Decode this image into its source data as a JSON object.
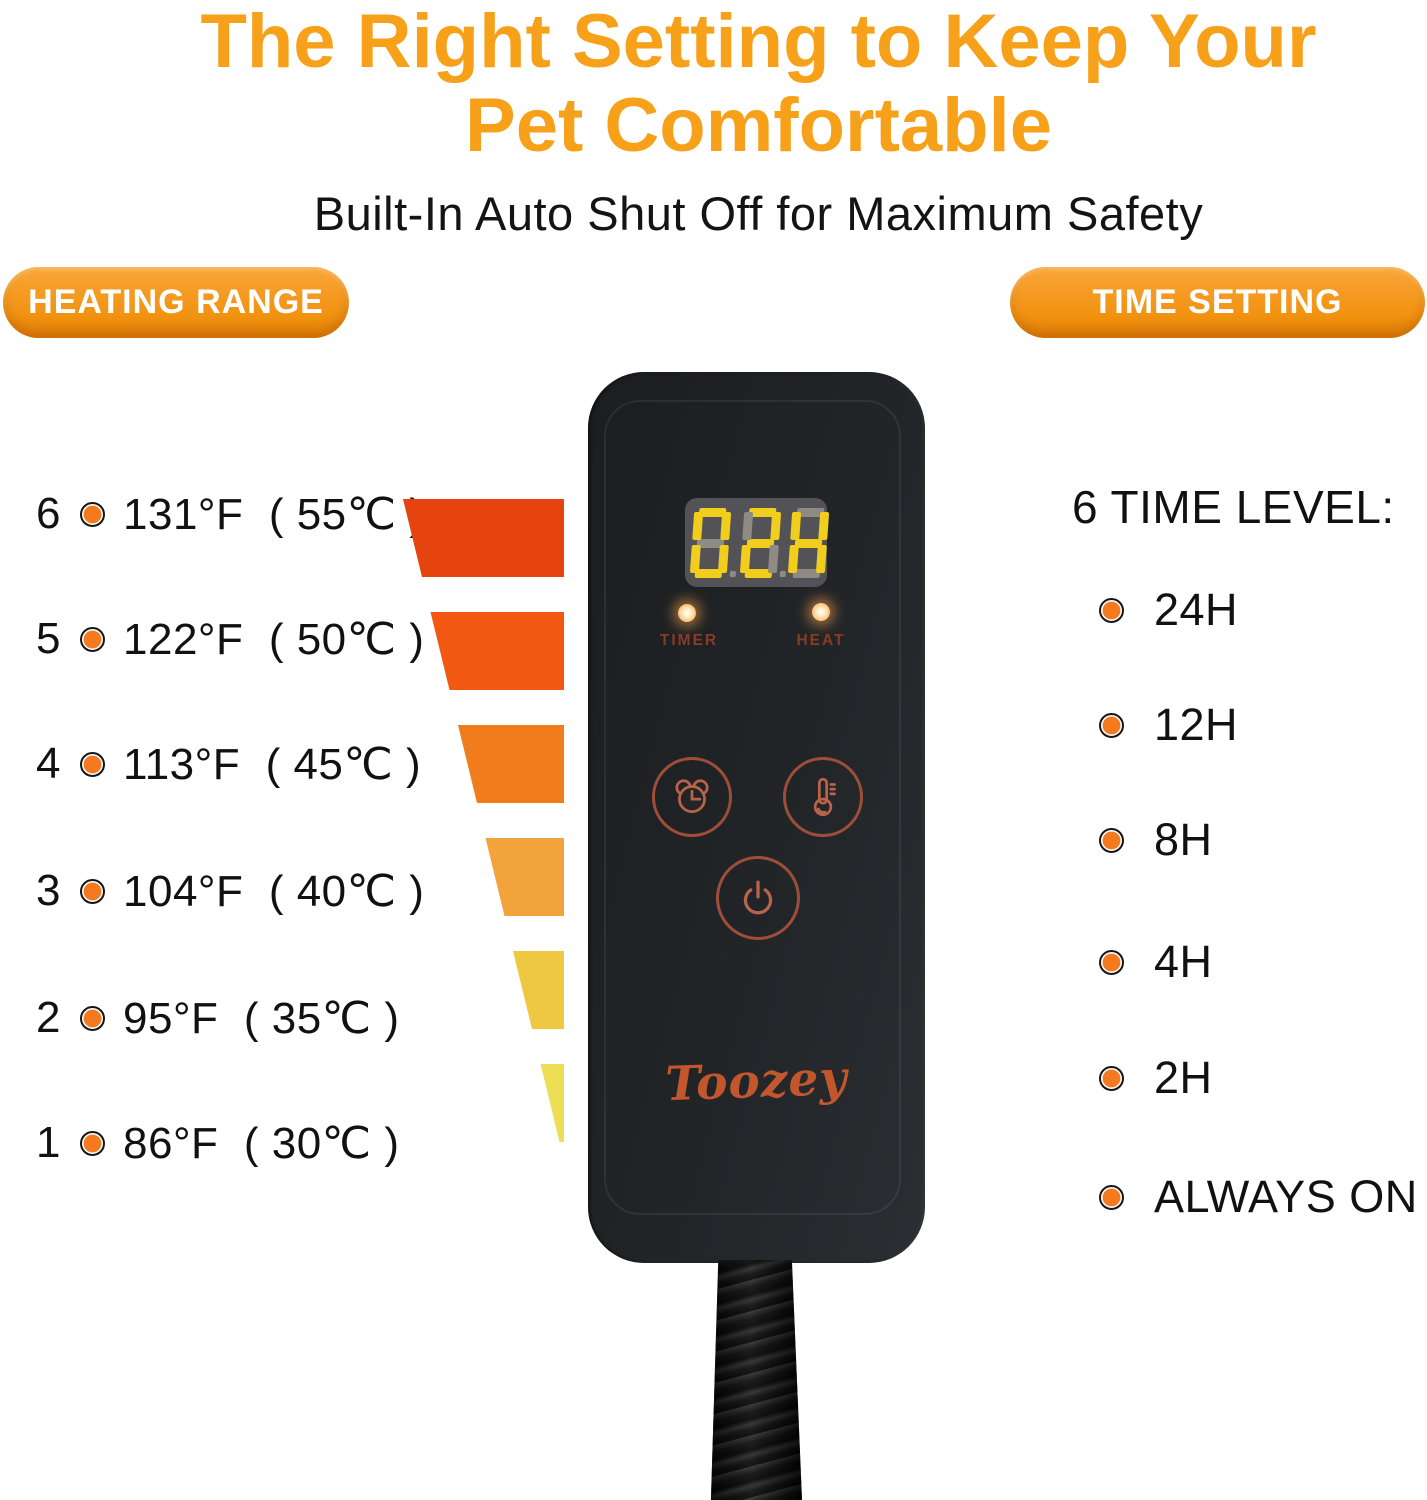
{
  "header": {
    "title_line1": "The Right Setting to Keep Your",
    "title_line2": "Pet Comfortable",
    "subtitle": "Built-In Auto Shut Off for Maximum Safety"
  },
  "section_labels": {
    "heating_range": "HEATING RANGE",
    "time_setting": "TIME SETTING"
  },
  "heating_levels": [
    {
      "level": "6",
      "temp_f": "131°F",
      "temp_c": "55℃",
      "bar_color": "#E5440F"
    },
    {
      "level": "5",
      "temp_f": "122°F",
      "temp_c": "50℃",
      "bar_color": "#F35812"
    },
    {
      "level": "4",
      "temp_f": "113°F",
      "temp_c": "45℃",
      "bar_color": "#F07C1C"
    },
    {
      "level": "3",
      "temp_f": "104°F",
      "temp_c": "40℃",
      "bar_color": "#F2A33C"
    },
    {
      "level": "2",
      "temp_f": "95°F",
      "temp_c": "35℃",
      "bar_color": "#EFC842"
    },
    {
      "level": "1",
      "temp_f": "86°F",
      "temp_c": "30℃",
      "bar_color": "#ECDF55"
    }
  ],
  "time_setting": {
    "heading": "6 TIME LEVEL:",
    "items": [
      "24H",
      "12H",
      "8H",
      "4H",
      "2H",
      "ALWAYS ON"
    ]
  },
  "device": {
    "brand": "Toozey",
    "display": {
      "value": "02H",
      "digits": [
        {
          "char": "0",
          "segments": [
            "a",
            "b",
            "c",
            "d",
            "e",
            "f"
          ],
          "dp": true
        },
        {
          "char": "2",
          "segments": [
            "a",
            "b",
            "g",
            "e",
            "d"
          ],
          "dp": true
        },
        {
          "char": "H",
          "segments": [
            "f",
            "b",
            "g",
            "e",
            "c"
          ],
          "dp": false
        }
      ]
    },
    "indicators": [
      {
        "label": "TIMER"
      },
      {
        "label": "HEAT"
      }
    ],
    "buttons": [
      {
        "name": "timer-button",
        "icon": "alarm-clock-icon"
      },
      {
        "name": "heat-level-button",
        "icon": "thermometer-icon"
      },
      {
        "name": "power-button",
        "icon": "power-icon"
      }
    ]
  },
  "colors": {
    "title_orange": "#F7A11B",
    "pill_top": "#F9A53A",
    "pill_bottom": "#E07E06",
    "bullet_orange": "#F4791F",
    "segment_on": "#F1CD1E",
    "segment_off": "#8E8B85",
    "lcd_panel": "#535257",
    "button_ring": "#9E4E38",
    "icon_stroke": "#BA6349",
    "indicator_label_red": "#8A3A26",
    "logo_rust": "#C2572D",
    "device_body": "#222528"
  }
}
